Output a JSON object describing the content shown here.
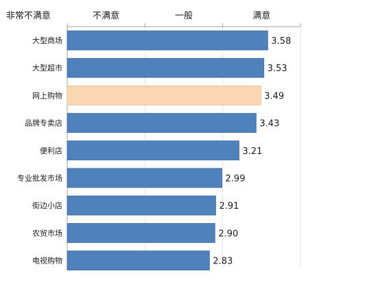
{
  "chart_data": {
    "type": "bar",
    "orientation": "horizontal",
    "categories": [
      "大型商场",
      "大型超市",
      "网上购物",
      "品牌专卖店",
      "便利店",
      "专业批发市场",
      "街边小店",
      "农贸市场",
      "电视购物"
    ],
    "values": [
      3.58,
      3.53,
      3.49,
      3.43,
      3.21,
      2.99,
      2.91,
      2.9,
      2.83
    ],
    "value_labels": [
      "3.58",
      "3.53",
      "3.49",
      "3.43",
      "3.21",
      "2.99",
      "2.91",
      "2.90",
      "2.83"
    ],
    "scale_labels": [
      "非常不满意",
      "不满意",
      "一般",
      "满意"
    ],
    "xlim": [
      1,
      4
    ],
    "highlight_category": "网上购物",
    "grid": true,
    "legend": "none",
    "axis_position": "top",
    "colors": {
      "bar": "#4f81bd",
      "bar_stroke": "#3a6a9e",
      "highlight": "#fad7b2",
      "highlight_stroke": "#e8b98a",
      "grid": "#e3e3e3",
      "axis": "#a0a0a0"
    }
  }
}
